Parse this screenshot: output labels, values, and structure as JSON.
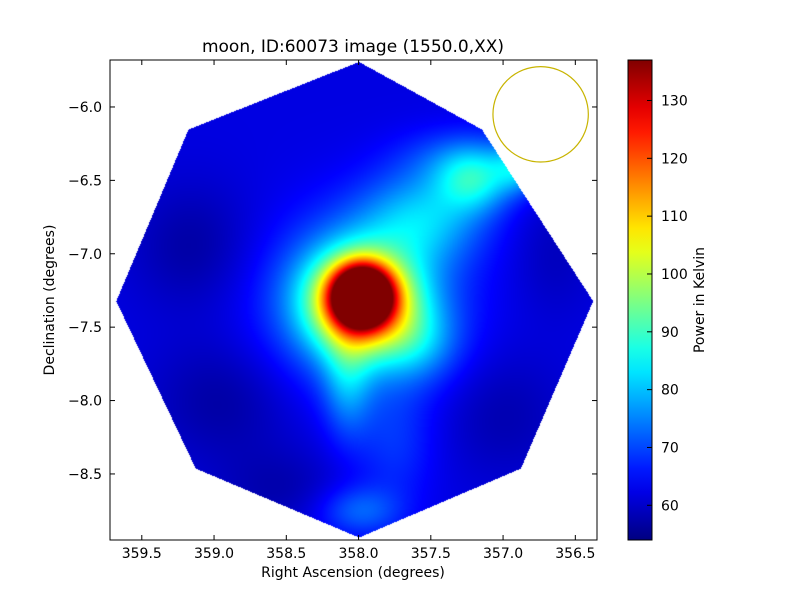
{
  "chart_data": {
    "type": "heatmap",
    "title": "moon, ID:60073 image (1550.0,XX)",
    "xlabel": "Right Ascension (degrees)",
    "ylabel": "Declination (degrees)",
    "colorbar_label": "Power in Kelvin",
    "xlim": [
      359.72,
      356.35
    ],
    "ylim": [
      -8.95,
      -5.68
    ],
    "x_ticks": [
      {
        "value": 359.5,
        "label": "359.5"
      },
      {
        "value": 359.0,
        "label": "359.0"
      },
      {
        "value": 358.5,
        "label": "358.5"
      },
      {
        "value": 358.0,
        "label": "358.0"
      },
      {
        "value": 357.5,
        "label": "357.5"
      },
      {
        "value": 357.0,
        "label": "357.0"
      },
      {
        "value": 356.5,
        "label": "356.5"
      }
    ],
    "y_ticks": [
      {
        "value": -6.0,
        "label": "−6.0"
      },
      {
        "value": -6.5,
        "label": "−6.5"
      },
      {
        "value": -7.0,
        "label": "−7.0"
      },
      {
        "value": -7.5,
        "label": "−7.5"
      },
      {
        "value": -8.0,
        "label": "−8.0"
      },
      {
        "value": -8.5,
        "label": "−8.5"
      }
    ],
    "colorbar": {
      "range": [
        54,
        137
      ],
      "colormap": "jet",
      "ticks": [
        {
          "value": 60,
          "label": "60"
        },
        {
          "value": 70,
          "label": "70"
        },
        {
          "value": 80,
          "label": "80"
        },
        {
          "value": 90,
          "label": "90"
        },
        {
          "value": 100,
          "label": "100"
        },
        {
          "value": 110,
          "label": "110"
        },
        {
          "value": 120,
          "label": "120"
        },
        {
          "value": 130,
          "label": "130"
        }
      ]
    },
    "field_outline": {
      "shape": "octagon",
      "vertices": [
        [
          358.0,
          -5.69
        ],
        [
          357.15,
          -6.15
        ],
        [
          356.38,
          -7.32
        ],
        [
          356.88,
          -8.46
        ],
        [
          358.0,
          -8.93
        ],
        [
          359.13,
          -8.46
        ],
        [
          359.68,
          -7.32
        ],
        [
          359.18,
          -6.15
        ]
      ]
    },
    "background_level": 62,
    "features": [
      {
        "kind": "source",
        "ra": 357.98,
        "dec": -7.28,
        "peak": 137,
        "sigma_ra": 0.13,
        "sigma_dec": 0.13
      },
      {
        "kind": "halo",
        "ra": 357.98,
        "dec": -7.32,
        "peak": 112,
        "sigma_ra": 0.24,
        "sigma_dec": 0.22
      },
      {
        "kind": "halo",
        "ra": 357.98,
        "dec": -7.32,
        "peak": 84,
        "sigma_ra": 0.42,
        "sigma_dec": 0.38
      },
      {
        "kind": "plume",
        "ra": 357.55,
        "dec": -6.75,
        "peak": 78,
        "sigma_ra": 0.3,
        "sigma_dec": 0.22
      },
      {
        "kind": "plume",
        "ra": 357.2,
        "dec": -6.5,
        "peak": 80,
        "sigma_ra": 0.18,
        "sigma_dec": 0.15
      },
      {
        "kind": "plume",
        "ra": 356.88,
        "dec": -6.4,
        "peak": 78,
        "sigma_ra": 0.12,
        "sigma_dec": 0.12
      },
      {
        "kind": "plume",
        "ra": 358.08,
        "dec": -7.85,
        "peak": 74,
        "sigma_ra": 0.12,
        "sigma_dec": 0.28
      },
      {
        "kind": "plume",
        "ra": 357.6,
        "dec": -7.6,
        "peak": 72,
        "sigma_ra": 0.2,
        "sigma_dec": 0.18
      },
      {
        "kind": "plume",
        "ra": 358.0,
        "dec": -8.75,
        "peak": 72,
        "sigma_ra": 0.2,
        "sigma_dec": 0.12
      },
      {
        "kind": "plume",
        "ra": 357.75,
        "dec": -8.3,
        "peak": 68,
        "sigma_ra": 0.2,
        "sigma_dec": 0.3
      },
      {
        "kind": "plume",
        "ra": 357.3,
        "dec": -6.35,
        "peak": 70,
        "sigma_ra": 0.3,
        "sigma_dec": 0.15
      },
      {
        "kind": "cool",
        "ra": 359.15,
        "dec": -6.95,
        "peak": 57,
        "sigma_ra": 0.3,
        "sigma_dec": 0.3
      },
      {
        "kind": "cool",
        "ra": 358.95,
        "dec": -8.0,
        "peak": 57,
        "sigma_ra": 0.35,
        "sigma_dec": 0.3
      },
      {
        "kind": "cool",
        "ra": 358.55,
        "dec": -8.6,
        "peak": 58,
        "sigma_ra": 0.3,
        "sigma_dec": 0.2
      },
      {
        "kind": "cool",
        "ra": 357.0,
        "dec": -8.1,
        "peak": 58,
        "sigma_ra": 0.3,
        "sigma_dec": 0.3
      },
      {
        "kind": "cool",
        "ra": 356.65,
        "dec": -7.0,
        "peak": 59,
        "sigma_ra": 0.2,
        "sigma_dec": 0.3
      }
    ],
    "beam_circle": {
      "ra": 356.74,
      "dec": -6.05,
      "radius_deg": 0.33,
      "color": "#c8b400"
    }
  },
  "colors": {
    "axes_edge": "#000000",
    "beam": "#c8b400"
  }
}
